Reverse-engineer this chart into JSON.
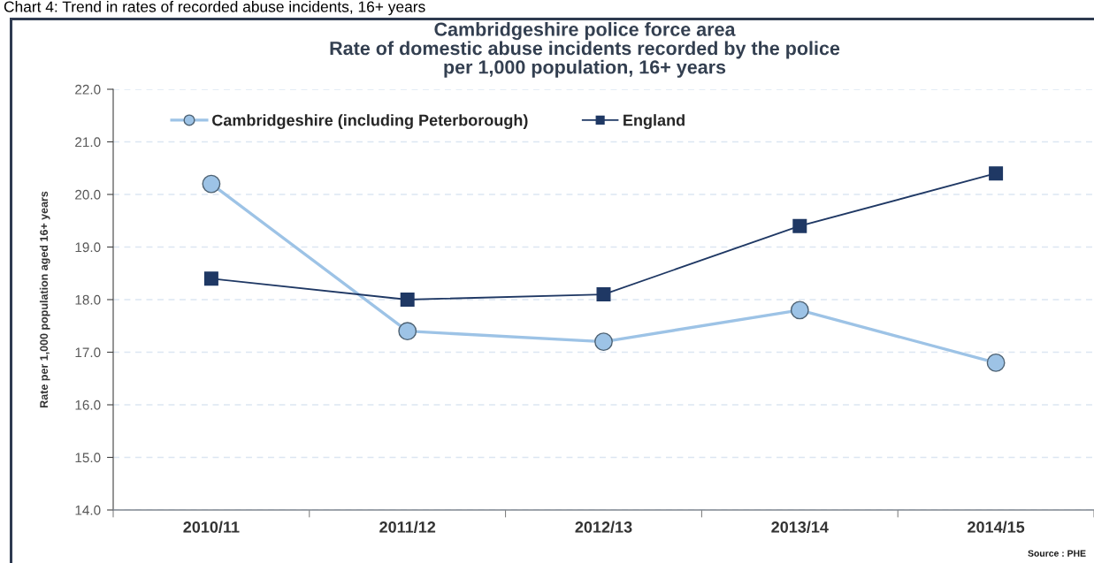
{
  "chart_data": {
    "type": "line",
    "title": "Cambridgeshire police force area\nRate of domestic abuse incidents recorded by the police\nper 1,000 population, 16+ years",
    "ylabel": "Rate per 1,000 population aged 16+ years",
    "annotations": [
      "Chart 4: Trend in rates of recorded abuse incidents, 16+ years",
      "Source : PHE"
    ],
    "categories": [
      "2010/11",
      "2011/12",
      "2012/13",
      "2013/14",
      "2014/15"
    ],
    "series": [
      {
        "name": "Cambridgeshire (including Peterborough)",
        "color": "#9dc3e6",
        "marker": "circle",
        "values": [
          20.2,
          17.4,
          17.2,
          17.8,
          16.8
        ]
      },
      {
        "name": "England",
        "color": "#1f3864",
        "marker": "square",
        "values": [
          18.4,
          18.0,
          18.1,
          19.4,
          20.4
        ]
      }
    ],
    "ylim": [
      14,
      22
    ],
    "yticks": [
      {
        "value": 14,
        "label": "14.0"
      },
      {
        "value": 15,
        "label": "15.0"
      },
      {
        "value": 16,
        "label": "16.0"
      },
      {
        "value": 17,
        "label": "17.0"
      },
      {
        "value": 18,
        "label": "18.0"
      },
      {
        "value": 19,
        "label": "19.0"
      },
      {
        "value": 20,
        "label": "20.0"
      },
      {
        "value": 21,
        "label": "21.0"
      },
      {
        "value": 22,
        "label": "22.0"
      }
    ],
    "grid": "y",
    "legend": "top left",
    "line_style": "solid"
  }
}
